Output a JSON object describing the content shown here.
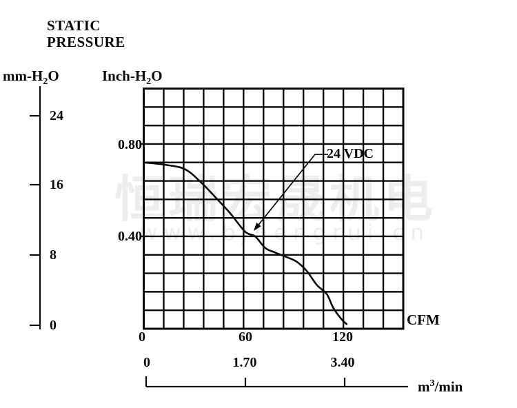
{
  "title": {
    "line1": "STATIC",
    "line2": "PRESSURE"
  },
  "watermark": {
    "cjk": "恒瑞宏晟机电",
    "url": "www.bjhengrui.cn"
  },
  "chart_data": {
    "type": "line",
    "title": "Static pressure vs airflow fan performance curve",
    "legend_label": "24 VDC",
    "series": [
      {
        "name": "24 VDC",
        "x_unit": "CFM",
        "y_unit": "Inch-H2O",
        "points": [
          [
            0,
            0.72
          ],
          [
            13,
            0.71
          ],
          [
            25,
            0.69
          ],
          [
            35,
            0.63
          ],
          [
            43,
            0.57
          ],
          [
            52,
            0.5
          ],
          [
            61,
            0.42
          ],
          [
            67,
            0.4
          ],
          [
            73,
            0.35
          ],
          [
            79,
            0.33
          ],
          [
            86,
            0.31
          ],
          [
            92,
            0.29
          ],
          [
            98,
            0.25
          ],
          [
            104,
            0.19
          ],
          [
            110,
            0.15
          ],
          [
            114,
            0.09
          ],
          [
            119,
            0.04
          ],
          [
            122,
            0.02
          ]
        ]
      }
    ],
    "axes": {
      "x_cfm": {
        "label": "CFM",
        "ticks": [
          "0",
          "60",
          "120"
        ],
        "range": [
          0,
          156
        ]
      },
      "x_m3min": {
        "label_prefix": "m",
        "label_sup": "3",
        "label_suffix": "/min",
        "ticks": [
          "0",
          "1.70",
          "3.40"
        ]
      },
      "y_inch": {
        "label_prefix": "Inch-H",
        "label_sub": "2",
        "label_suffix": "O",
        "ticks": [
          "0.80",
          "0.40"
        ],
        "range": [
          0,
          1.04
        ]
      },
      "y_mm": {
        "label_prefix": "mm-H",
        "label_sub": "2",
        "label_suffix": "O",
        "ticks": [
          "24",
          "16",
          "8",
          "0"
        ]
      }
    },
    "grid": {
      "cols": 13,
      "rows": 13,
      "cfm_per_col": 12,
      "inch_per_row": 0.08,
      "grid_on": true
    },
    "colors": {
      "line": "#0a0a0a",
      "grid": "#0a0a0a",
      "watermark": "#ededed"
    }
  }
}
